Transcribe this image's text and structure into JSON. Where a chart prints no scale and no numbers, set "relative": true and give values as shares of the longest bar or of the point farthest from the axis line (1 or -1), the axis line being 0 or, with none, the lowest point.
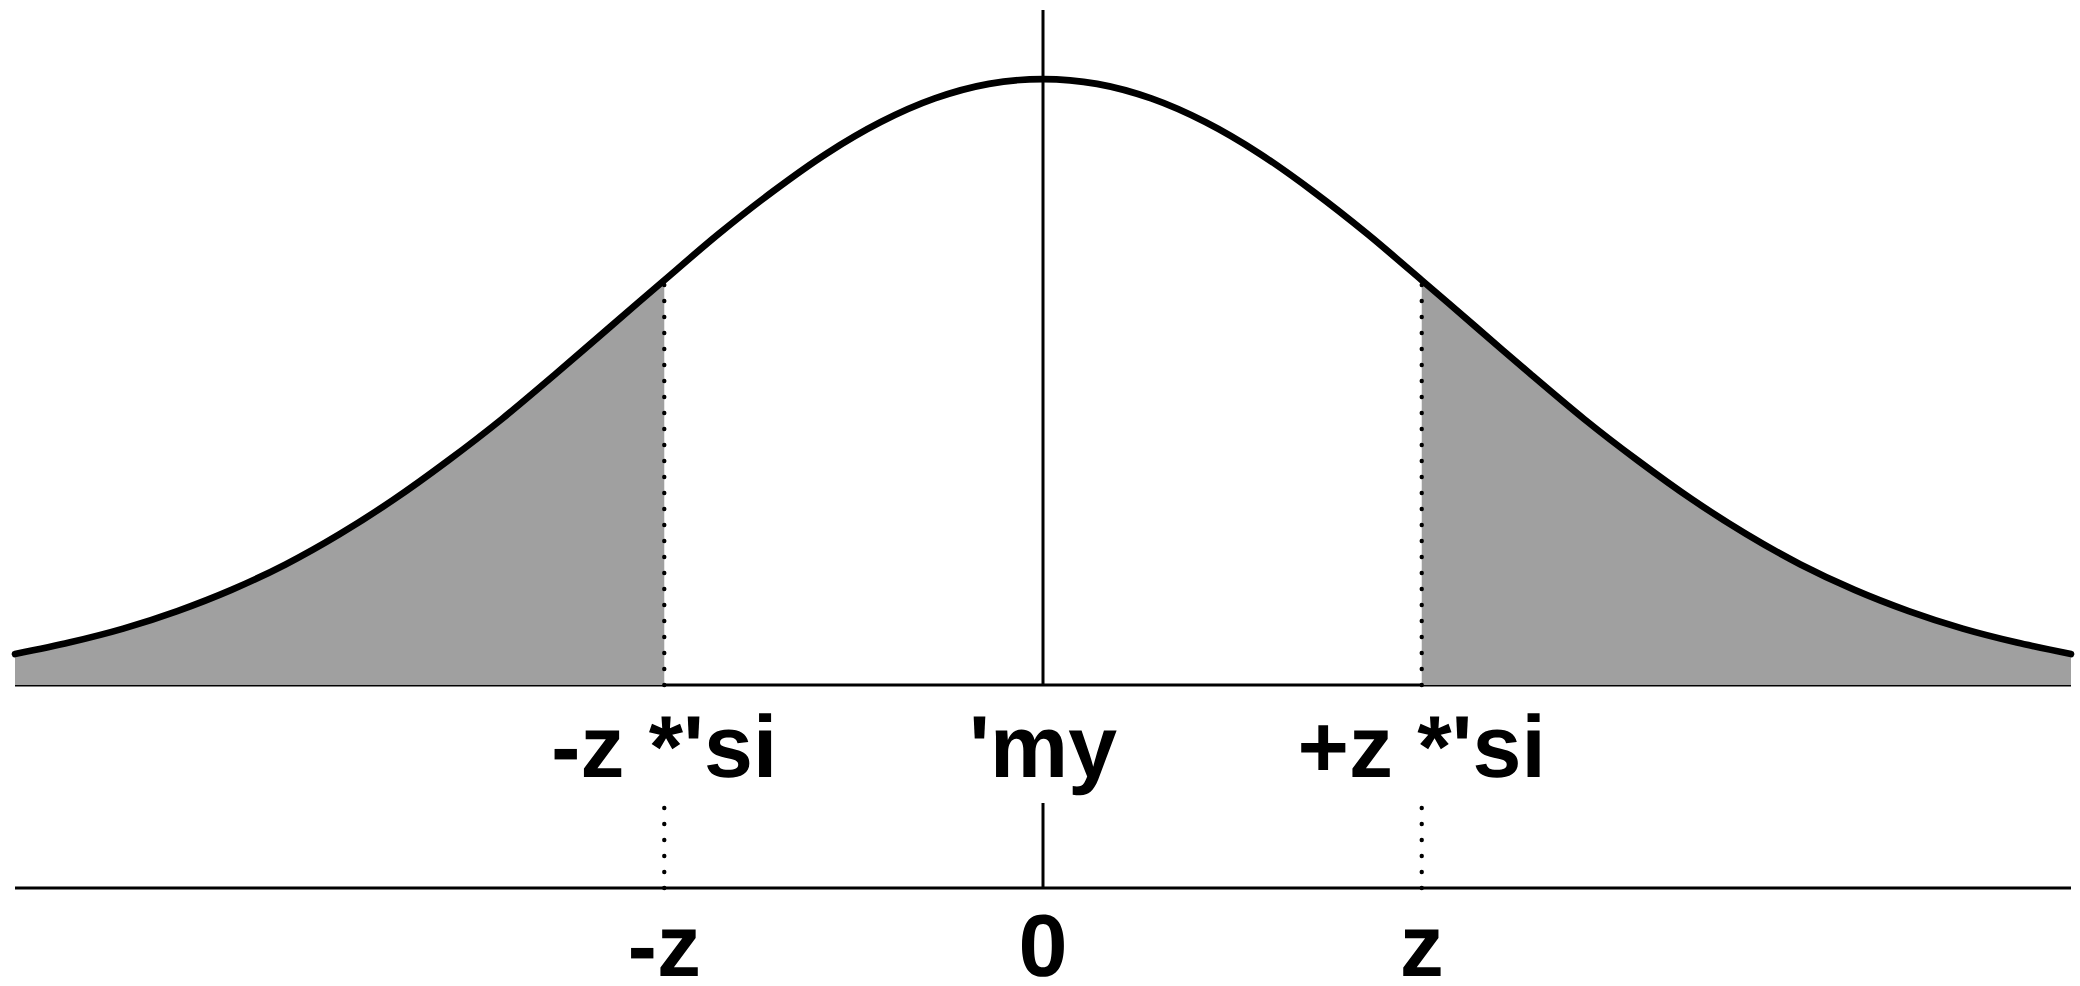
{
  "chart_data": {
    "type": "line",
    "relative": true,
    "categories": [
      null,
      null,
      null,
      null,
      null,
      null,
      null,
      null,
      null,
      null,
      null,
      null,
      "-z *'si",
      null,
      null,
      null,
      null,
      null,
      null,
      "'my",
      null,
      null,
      null,
      null,
      null,
      null,
      "+z *'si",
      null,
      null,
      null,
      null,
      null,
      null,
      null,
      null,
      null,
      null,
      null,
      null
    ],
    "series": [
      {
        "type": "area",
        "color": "#a0a0a0",
        "values": [
          0.051,
          0.07,
          0.093,
          0.122,
          0.157,
          0.199,
          0.249,
          0.306,
          0.37,
          0.439,
          0.514,
          0.591,
          0.668,
          null,
          null,
          null,
          null,
          null,
          null,
          null,
          null,
          null,
          null,
          null,
          null,
          null,
          null,
          null,
          null,
          null,
          null,
          null,
          null,
          null,
          null,
          null,
          null,
          null,
          null
        ]
      },
      {
        "type": "area",
        "color": "#a0a0a0",
        "values": [
          null,
          null,
          null,
          null,
          null,
          null,
          null,
          null,
          null,
          null,
          null,
          null,
          null,
          null,
          null,
          null,
          null,
          null,
          null,
          null,
          null,
          null,
          null,
          null,
          null,
          null,
          0.668,
          0.591,
          0.514,
          0.439,
          0.37,
          0.306,
          0.249,
          0.199,
          0.157,
          0.122,
          0.093,
          0.07,
          0.051
        ]
      },
      {
        "color": "#000000",
        "values": [
          0.051,
          0.07,
          0.093,
          0.122,
          0.157,
          0.199,
          0.249,
          0.306,
          0.37,
          0.439,
          0.514,
          0.591,
          0.668,
          0.744,
          0.814,
          0.877,
          0.929,
          0.968,
          0.992,
          1,
          0.992,
          0.968,
          0.929,
          0.877,
          0.814,
          0.744,
          0.668,
          0.591,
          0.514,
          0.439,
          0.37,
          0.306,
          0.249,
          0.199,
          0.157,
          0.122,
          0.093,
          0.07,
          0.051
        ]
      }
    ],
    "ref_lines": [
      {
        "axis": "x",
        "value": "-z *'si",
        "line_style": "dotted"
      },
      {
        "axis": "x",
        "value": "'my",
        "line_style": "solid"
      },
      {
        "axis": "x",
        "value": "+z *'si",
        "line_style": "dotted"
      }
    ],
    "annotations": [
      {
        "text": "-z",
        "x": "-z *'si"
      },
      {
        "text": "0",
        "x": "'my"
      },
      {
        "text": "z",
        "x": "+z *'si"
      }
    ]
  }
}
